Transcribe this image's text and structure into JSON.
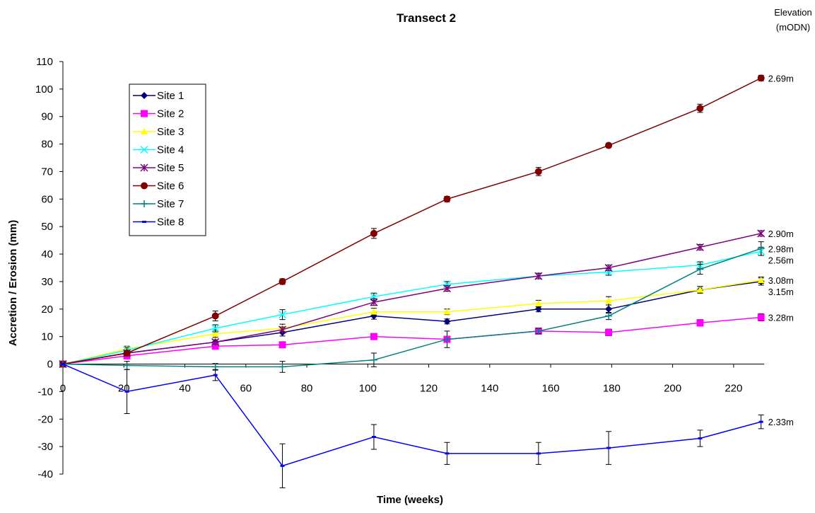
{
  "chart_data": {
    "type": "line",
    "title": "Transect 2",
    "xlabel": "Time (weeks)",
    "ylabel": "Accretion / Erosion (mm)",
    "elevation_header": [
      "Elevation",
      "(mODN)"
    ],
    "xlim": [
      0,
      230
    ],
    "ylim": [
      -40,
      110
    ],
    "x_ticks": [
      0,
      20,
      40,
      60,
      80,
      100,
      120,
      140,
      160,
      180,
      200,
      220
    ],
    "y_ticks": [
      -40,
      -30,
      -20,
      -10,
      0,
      10,
      20,
      30,
      40,
      50,
      60,
      70,
      80,
      90,
      100,
      110
    ],
    "grid": false,
    "legend_position": "top-left",
    "x": [
      0,
      21,
      50,
      72,
      102,
      126,
      156,
      179,
      209,
      229
    ],
    "series": [
      {
        "name": "Site 1",
        "color": "#000080",
        "marker": "diamond",
        "end_label": "3.15m",
        "values": [
          0,
          4,
          8,
          11.5,
          17.5,
          15.5,
          20,
          20,
          27,
          30
        ],
        "errors": [
          0,
          0.6,
          0.8,
          1.3,
          1.2,
          0.9,
          1,
          1.5,
          1.2,
          1.3
        ]
      },
      {
        "name": "Site 2",
        "color": "#FF00FF",
        "marker": "square",
        "end_label": "3.28m",
        "values": [
          0,
          3,
          6.5,
          7,
          10,
          9,
          12,
          11.5,
          15,
          17
        ],
        "errors": [
          0,
          0.6,
          0.8,
          0.8,
          0.8,
          1,
          0.8,
          1.2,
          1.2,
          1.3
        ]
      },
      {
        "name": "Site 3",
        "color": "#FFFF00",
        "marker": "triangle",
        "end_label": "3.08m",
        "values": [
          0,
          5.5,
          11,
          13,
          19,
          19,
          22,
          23,
          27,
          30.5
        ],
        "errors": [
          0,
          1,
          1.3,
          1.5,
          1.3,
          1,
          1.2,
          1.5,
          1.2,
          1.2
        ]
      },
      {
        "name": "Site 4",
        "color": "#00FFFF",
        "marker": "x",
        "end_label": "2.56m",
        "values": [
          0,
          5,
          13,
          18,
          24.5,
          29,
          32,
          33.5,
          36,
          41
        ],
        "errors": [
          0,
          1,
          1.3,
          1.8,
          1.3,
          1,
          1,
          1.2,
          1.2,
          1.5
        ]
      },
      {
        "name": "Site 5",
        "color": "#800080",
        "marker": "star",
        "end_label": "2.90m",
        "values": [
          0,
          4,
          8,
          12.5,
          22.5,
          27.5,
          32,
          35,
          42.5,
          47.5
        ],
        "errors": [
          0,
          0.6,
          0.8,
          1,
          1.2,
          1,
          1,
          1,
          1,
          1
        ]
      },
      {
        "name": "Site 6",
        "color": "#800000",
        "marker": "circle",
        "end_label": "2.69m",
        "values": [
          0,
          4,
          17.5,
          30,
          47.5,
          60,
          70,
          79.5,
          93,
          104
        ],
        "errors": [
          0,
          1,
          1.8,
          1,
          1.8,
          1,
          1.5,
          0.8,
          1.5,
          1
        ]
      },
      {
        "name": "Site 7",
        "color": "#008080",
        "marker": "plus",
        "end_label": "2.98m",
        "values": [
          0,
          -0.5,
          -1,
          -1,
          1.5,
          9,
          12,
          17.5,
          34.5,
          42
        ],
        "errors": [
          0,
          1.5,
          1.2,
          2,
          2.5,
          3,
          1,
          1.3,
          1.8,
          2.5
        ]
      },
      {
        "name": "Site 8",
        "color": "#0000FF",
        "marker": "dash",
        "end_label": "2.33m",
        "values": [
          0,
          -10,
          -4,
          -37,
          -26.5,
          -32.5,
          -32.5,
          -30.5,
          -27,
          -21
        ],
        "errors": [
          0,
          8,
          2,
          8,
          4.5,
          4,
          4,
          6,
          3,
          2.5
        ]
      }
    ]
  }
}
